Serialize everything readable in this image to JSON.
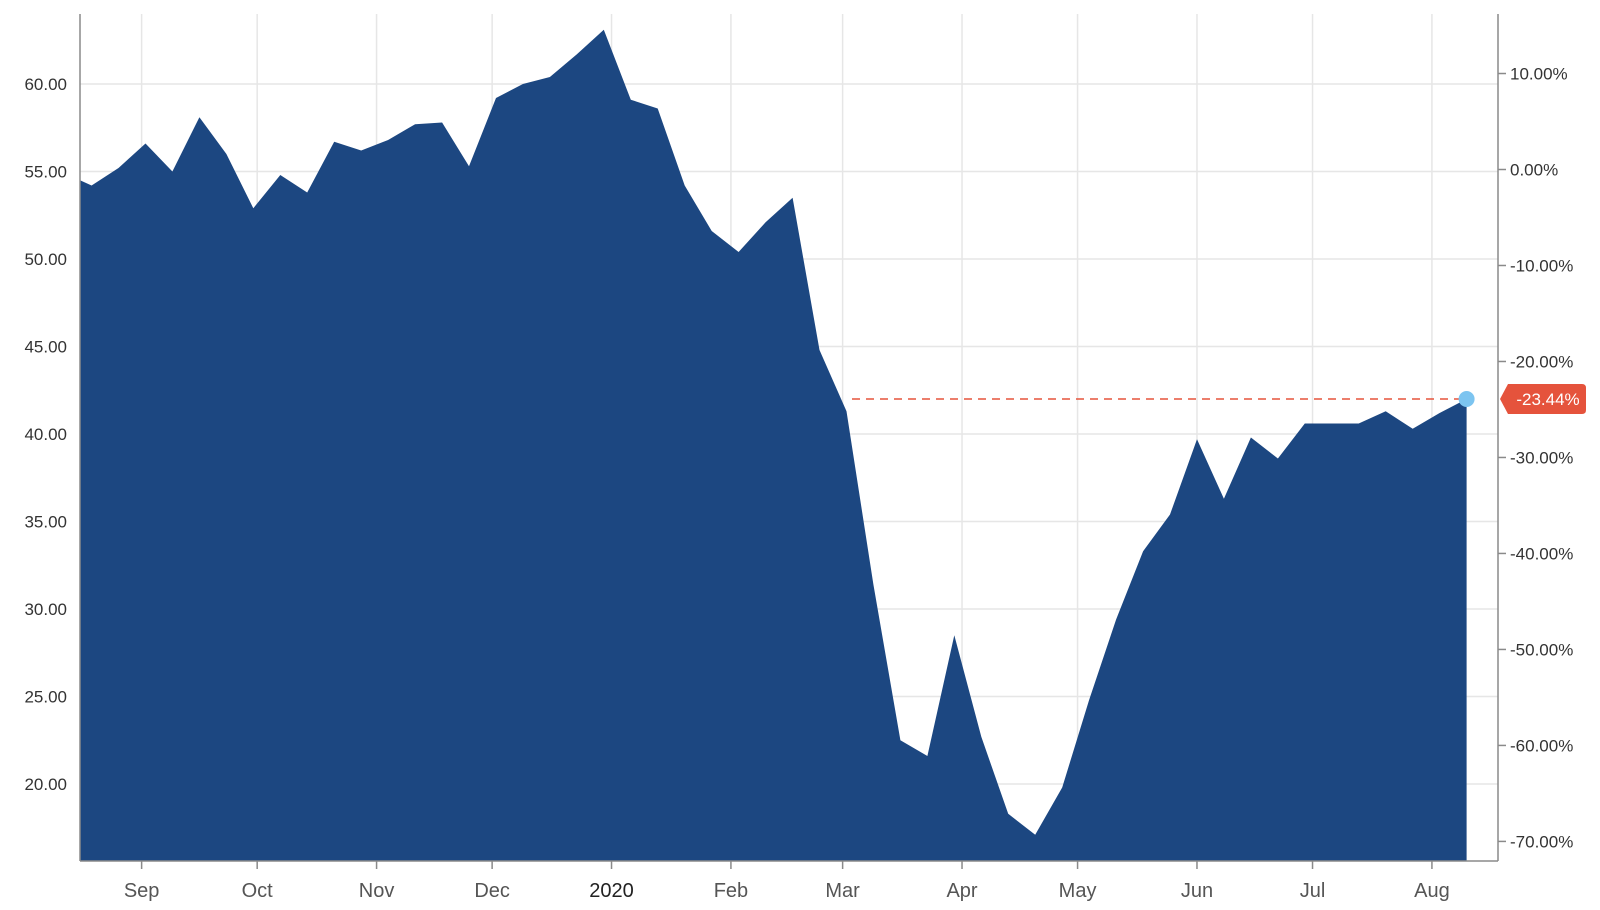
{
  "chart_data": {
    "type": "area",
    "title": "",
    "xlabel": "",
    "ylabel": "",
    "y_left_ticks": [
      "60.00",
      "55.00",
      "50.00",
      "45.00",
      "40.00",
      "35.00",
      "30.00",
      "25.00",
      "20.00"
    ],
    "y_right_ticks": [
      "10.00%",
      "0.00%",
      "-10.00%",
      "-20.00%",
      "-30.00%",
      "-40.00%",
      "-50.00%",
      "-60.00%",
      "-70.00%"
    ],
    "x_ticks": [
      "Sep",
      "Oct",
      "Nov",
      "Dec",
      "2020",
      "Feb",
      "Mar",
      "Apr",
      "May",
      "Jun",
      "Jul",
      "Aug"
    ],
    "x_tick_dates": [
      "2019-09-01",
      "2019-10-01",
      "2019-11-01",
      "2019-12-01",
      "2020-01-01",
      "2020-02-01",
      "2020-03-01",
      "2020-04-01",
      "2020-05-01",
      "2020-06-01",
      "2020-07-01",
      "2020-08-01"
    ],
    "ylim": [
      15.6,
      64.0
    ],
    "x": [
      "2019-08-16",
      "2019-08-19",
      "2019-08-26",
      "2019-09-02",
      "2019-09-09",
      "2019-09-16",
      "2019-09-23",
      "2019-09-30",
      "2019-10-07",
      "2019-10-14",
      "2019-10-21",
      "2019-10-28",
      "2019-11-04",
      "2019-11-11",
      "2019-11-18",
      "2019-11-25",
      "2019-12-02",
      "2019-12-09",
      "2019-12-16",
      "2019-12-23",
      "2019-12-30",
      "2020-01-06",
      "2020-01-13",
      "2020-01-20",
      "2020-01-27",
      "2020-02-03",
      "2020-02-10",
      "2020-02-17",
      "2020-02-24",
      "2020-03-02",
      "2020-03-09",
      "2020-03-16",
      "2020-03-23",
      "2020-03-30",
      "2020-04-06",
      "2020-04-13",
      "2020-04-20",
      "2020-04-27",
      "2020-05-04",
      "2020-05-11",
      "2020-05-18",
      "2020-05-25",
      "2020-06-01",
      "2020-06-08",
      "2020-06-15",
      "2020-06-22",
      "2020-06-29",
      "2020-07-06",
      "2020-07-13",
      "2020-07-20",
      "2020-07-27",
      "2020-08-03",
      "2020-08-10"
    ],
    "series": [
      {
        "values": [
          54.5,
          54.2,
          55.2,
          56.6,
          55.0,
          58.1,
          56.0,
          52.9,
          54.8,
          53.8,
          56.7,
          56.2,
          56.8,
          57.7,
          57.8,
          55.3,
          59.2,
          60.0,
          60.4,
          61.7,
          63.1,
          59.1,
          58.6,
          54.2,
          51.6,
          50.4,
          52.1,
          53.5,
          44.8,
          41.3,
          31.4,
          22.5,
          21.6,
          28.5,
          22.7,
          18.3,
          17.1,
          19.8,
          24.8,
          29.4,
          33.3,
          35.4,
          39.7,
          36.3,
          39.8,
          38.6,
          40.6,
          40.6,
          40.6,
          41.3,
          40.3,
          41.2,
          42.0
        ]
      }
    ],
    "y_right_axis": {
      "label_format": "percent change",
      "ylim": [
        -72.04,
        16.2
      ]
    },
    "last_value_marker": {
      "label": "-23.44%",
      "value": 42.0,
      "color": "#e5533c",
      "line_style": "dashed"
    },
    "colors": {
      "area_fill": "#1c4781",
      "grid": "#e6e6e6",
      "axis": "#8a8a8a",
      "marker_dot": "#7cc4f0"
    },
    "grid": true,
    "legend": "none"
  }
}
